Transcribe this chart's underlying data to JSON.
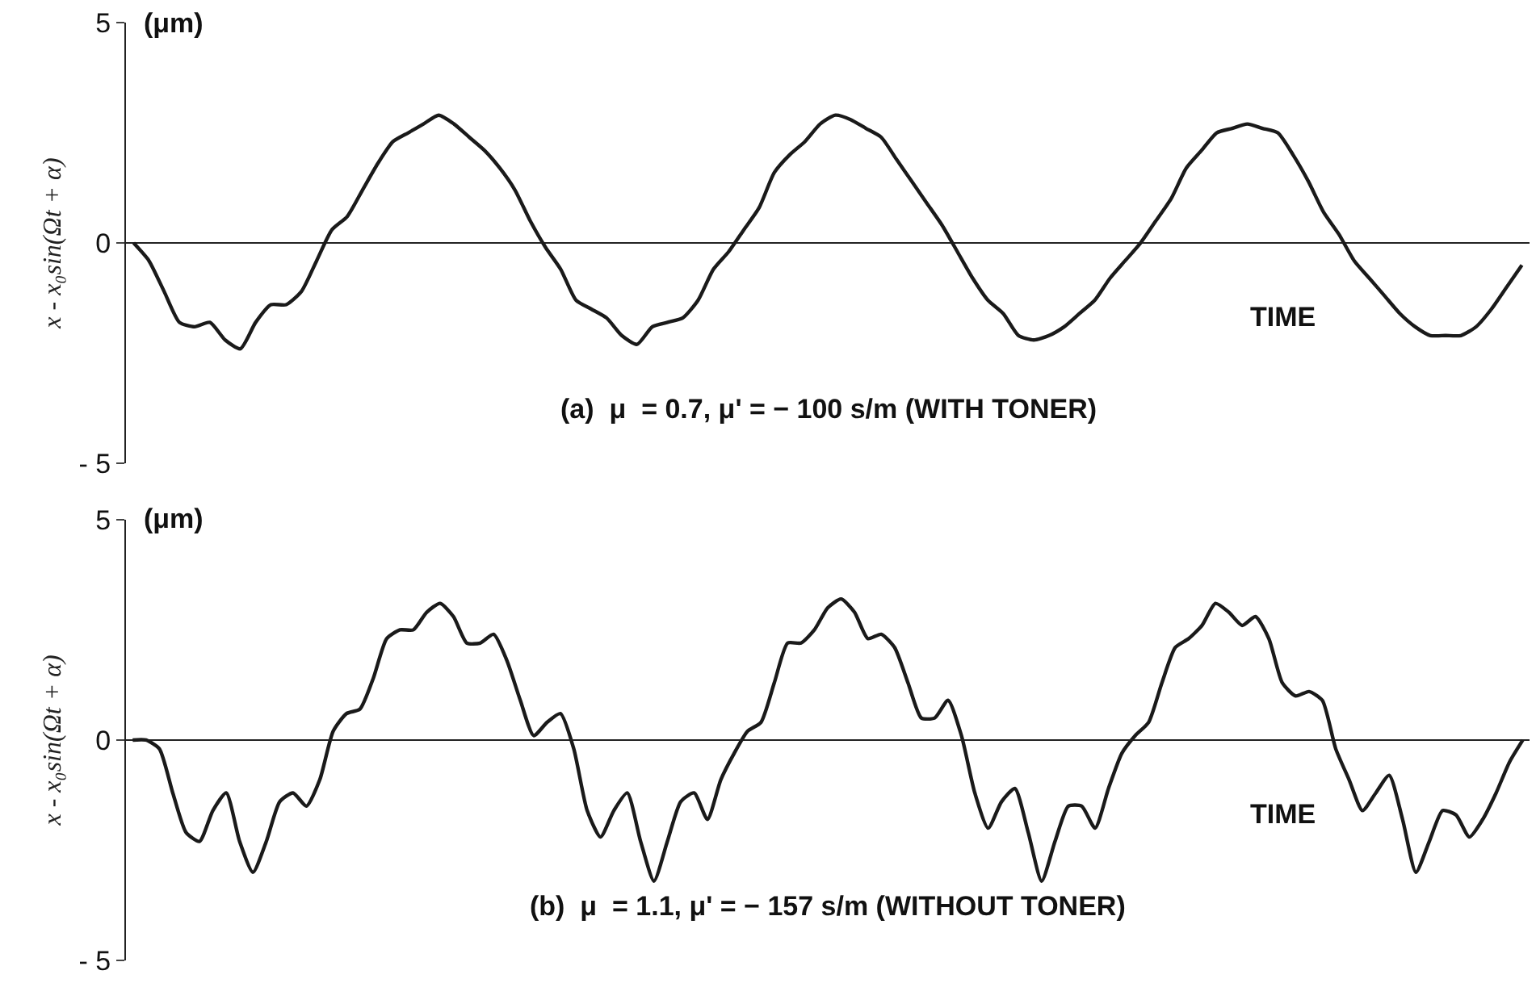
{
  "chart_data": [
    {
      "type": "line",
      "title": "(a)  μ  = 0.7, μ' = − 100 s/m (WITH TONER)",
      "ylabel": "x - x₀sin(Ωt + α)",
      "annotations": [
        "(μm)",
        "TIME"
      ],
      "tick_labels": "y",
      "line_style": "solid",
      "marker": "none",
      "categories": [
        null,
        null,
        null,
        null,
        null,
        null,
        null,
        null,
        null,
        null,
        null,
        null,
        null,
        null,
        null,
        null,
        null,
        null,
        null,
        null,
        null,
        null,
        null,
        null,
        null,
        null,
        null,
        null,
        null,
        null,
        null,
        null,
        null,
        null,
        null,
        null,
        null,
        null,
        null,
        null,
        null,
        null,
        null,
        null,
        null,
        null,
        null,
        null,
        null,
        null,
        null,
        null,
        null,
        null,
        null,
        null,
        null,
        null,
        null,
        null,
        null,
        null,
        null,
        null,
        null,
        null,
        null,
        null,
        null,
        null,
        null,
        null,
        null,
        null,
        null,
        null,
        null,
        null,
        null,
        null,
        null,
        null,
        null,
        null,
        null,
        null,
        null,
        null,
        null,
        null,
        null,
        null
      ],
      "series": [
        {
          "color": "#1a1a1a",
          "values": [
            0,
            -0.4,
            -1.1,
            -1.8,
            -1.9,
            -1.8,
            -2.2,
            -2.4,
            -1.8,
            -1.4,
            -1.4,
            -1.1,
            -0.4,
            0.3,
            0.6,
            1.2,
            1.8,
            2.3,
            2.5,
            2.7,
            2.9,
            2.7,
            2.4,
            2.1,
            1.7,
            1.2,
            0.5,
            -0.1,
            -0.6,
            -1.3,
            -1.5,
            -1.7,
            -2.1,
            -2.3,
            -1.9,
            -1.8,
            -1.7,
            -1.3,
            -0.6,
            -0.2,
            0.3,
            0.8,
            1.6,
            2.0,
            2.3,
            2.7,
            2.9,
            2.8,
            2.6,
            2.4,
            1.9,
            1.4,
            0.9,
            0.4,
            -0.2,
            -0.8,
            -1.3,
            -1.6,
            -2.1,
            -2.2,
            -2.1,
            -1.9,
            -1.6,
            -1.3,
            -0.8,
            -0.4,
            0.0,
            0.5,
            1.0,
            1.7,
            2.1,
            2.5,
            2.6,
            2.7,
            2.6,
            2.5,
            2.0,
            1.4,
            0.7,
            0.2,
            -0.4,
            -0.8,
            -1.2,
            -1.6,
            -1.9,
            -2.1,
            -2.1,
            -2.1,
            -1.9,
            -1.5,
            -1.0,
            -0.5
          ]
        }
      ],
      "ylim": [
        -5,
        5
      ],
      "yticks": [
        -5,
        0,
        5
      ]
    },
    {
      "type": "line",
      "title": "(b)  μ  = 1.1, μ' = − 157 s/m (WITHOUT TONER)",
      "ylabel": "x - x₀sin(Ωt + α)",
      "annotations": [
        "(μm)",
        "TIME"
      ],
      "tick_labels": "y",
      "line_style": "solid",
      "marker": "none",
      "categories": [
        null,
        null,
        null,
        null,
        null,
        null,
        null,
        null,
        null,
        null,
        null,
        null,
        null,
        null,
        null,
        null,
        null,
        null,
        null,
        null,
        null,
        null,
        null,
        null,
        null,
        null,
        null,
        null,
        null,
        null,
        null,
        null,
        null,
        null,
        null,
        null,
        null,
        null,
        null,
        null,
        null,
        null,
        null,
        null,
        null,
        null,
        null,
        null,
        null,
        null,
        null,
        null,
        null,
        null,
        null,
        null,
        null,
        null,
        null,
        null,
        null,
        null,
        null,
        null,
        null,
        null,
        null,
        null,
        null,
        null,
        null,
        null,
        null,
        null,
        null,
        null,
        null,
        null,
        null,
        null,
        null,
        null,
        null,
        null,
        null,
        null,
        null,
        null,
        null,
        null,
        null,
        null,
        null,
        null,
        null,
        null,
        null,
        null,
        null,
        null,
        null,
        null,
        null,
        null,
        null
      ],
      "series": [
        {
          "color": "#1a1a1a",
          "values": [
            0,
            0,
            -0.2,
            -1.2,
            -2.1,
            -2.3,
            -1.6,
            -1.2,
            -2.3,
            -3.0,
            -2.3,
            -1.4,
            -1.2,
            -1.5,
            -0.9,
            0.2,
            0.6,
            0.7,
            1.4,
            2.3,
            2.5,
            2.5,
            2.9,
            3.1,
            2.8,
            2.2,
            2.2,
            2.4,
            1.8,
            0.9,
            0.1,
            0.4,
            0.6,
            -0.2,
            -1.6,
            -2.2,
            -1.6,
            -1.2,
            -2.3,
            -3.2,
            -2.3,
            -1.4,
            -1.2,
            -1.8,
            -0.9,
            -0.3,
            0.2,
            0.4,
            1.3,
            2.2,
            2.2,
            2.5,
            3.0,
            3.2,
            2.9,
            2.3,
            2.4,
            2.1,
            1.3,
            0.5,
            0.5,
            0.9,
            0.1,
            -1.2,
            -2.0,
            -1.4,
            -1.1,
            -2.1,
            -3.2,
            -2.3,
            -1.5,
            -1.5,
            -2.0,
            -1.1,
            -0.3,
            0.1,
            0.4,
            1.3,
            2.1,
            2.3,
            2.6,
            3.1,
            2.9,
            2.6,
            2.8,
            2.3,
            1.3,
            1.0,
            1.1,
            0.9,
            -0.2,
            -0.9,
            -1.6,
            -1.2,
            -0.8,
            -1.8,
            -3.0,
            -2.3,
            -1.6,
            -1.7,
            -2.2,
            -1.8,
            -1.2,
            -0.5,
            0
          ]
        }
      ],
      "ylim": [
        -5,
        5
      ],
      "yticks": [
        -5,
        0,
        5
      ]
    }
  ]
}
